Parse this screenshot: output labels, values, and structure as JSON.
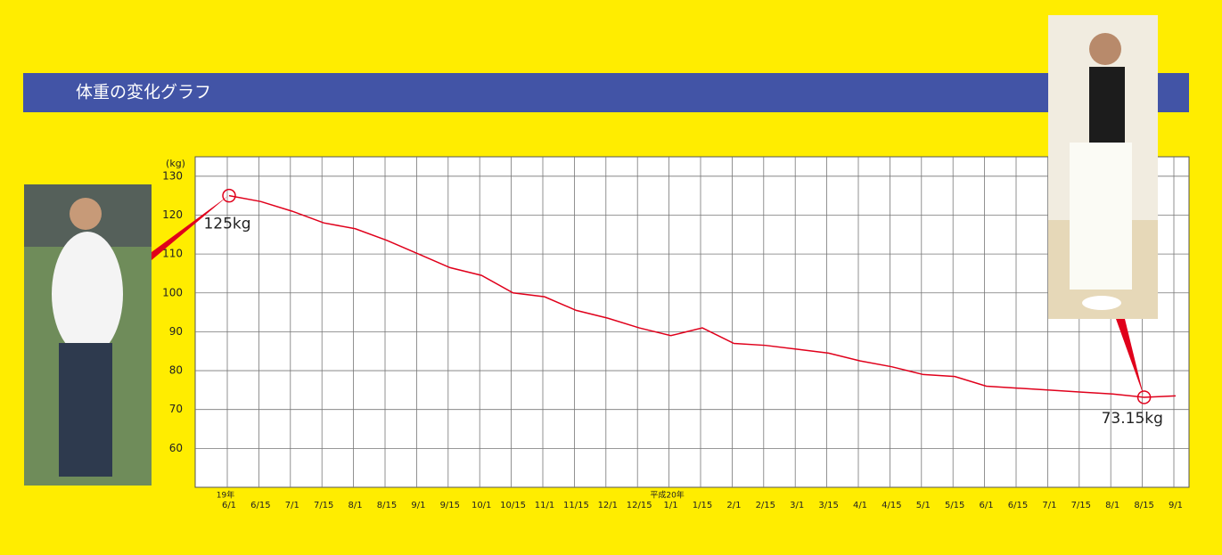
{
  "chart_data": {
    "type": "line",
    "title": "体重の変化グラフ",
    "y_label": "(kg)",
    "categories": [
      "6/1",
      "6/15",
      "7/1",
      "7/15",
      "8/1",
      "8/15",
      "9/1",
      "9/15",
      "10/1",
      "10/15",
      "11/1",
      "11/15",
      "12/1",
      "12/15",
      "1/1",
      "1/15",
      "2/1",
      "2/15",
      "3/1",
      "3/15",
      "4/1",
      "4/15",
      "5/1",
      "5/15",
      "6/1",
      "6/15",
      "7/1",
      "7/15",
      "8/1",
      "8/15",
      "9/1"
    ],
    "year_labels": [
      "19年",
      null,
      null,
      null,
      null,
      null,
      null,
      null,
      null,
      null,
      null,
      null,
      null,
      null,
      "平成20年",
      null,
      null,
      null,
      null,
      null,
      null,
      null,
      null,
      null,
      null,
      null,
      null,
      null,
      null,
      null,
      null
    ],
    "series": [
      {
        "color": "#e0001b",
        "values": [
          125,
          123.5,
          121,
          118,
          116.5,
          113.5,
          110,
          106.5,
          104.5,
          100,
          99,
          95.5,
          93.5,
          91,
          89,
          91,
          87,
          86.5,
          85.5,
          84.5,
          82.5,
          81,
          79,
          78.5,
          76,
          75.5,
          75,
          74.5,
          74,
          73.15,
          73.5
        ]
      }
    ],
    "ylim": [
      50,
      135
    ],
    "yticks": [
      60,
      70,
      80,
      90,
      100,
      110,
      120,
      130
    ],
    "grid": true,
    "annotations": [
      "125kg",
      "73.15kg"
    ]
  }
}
